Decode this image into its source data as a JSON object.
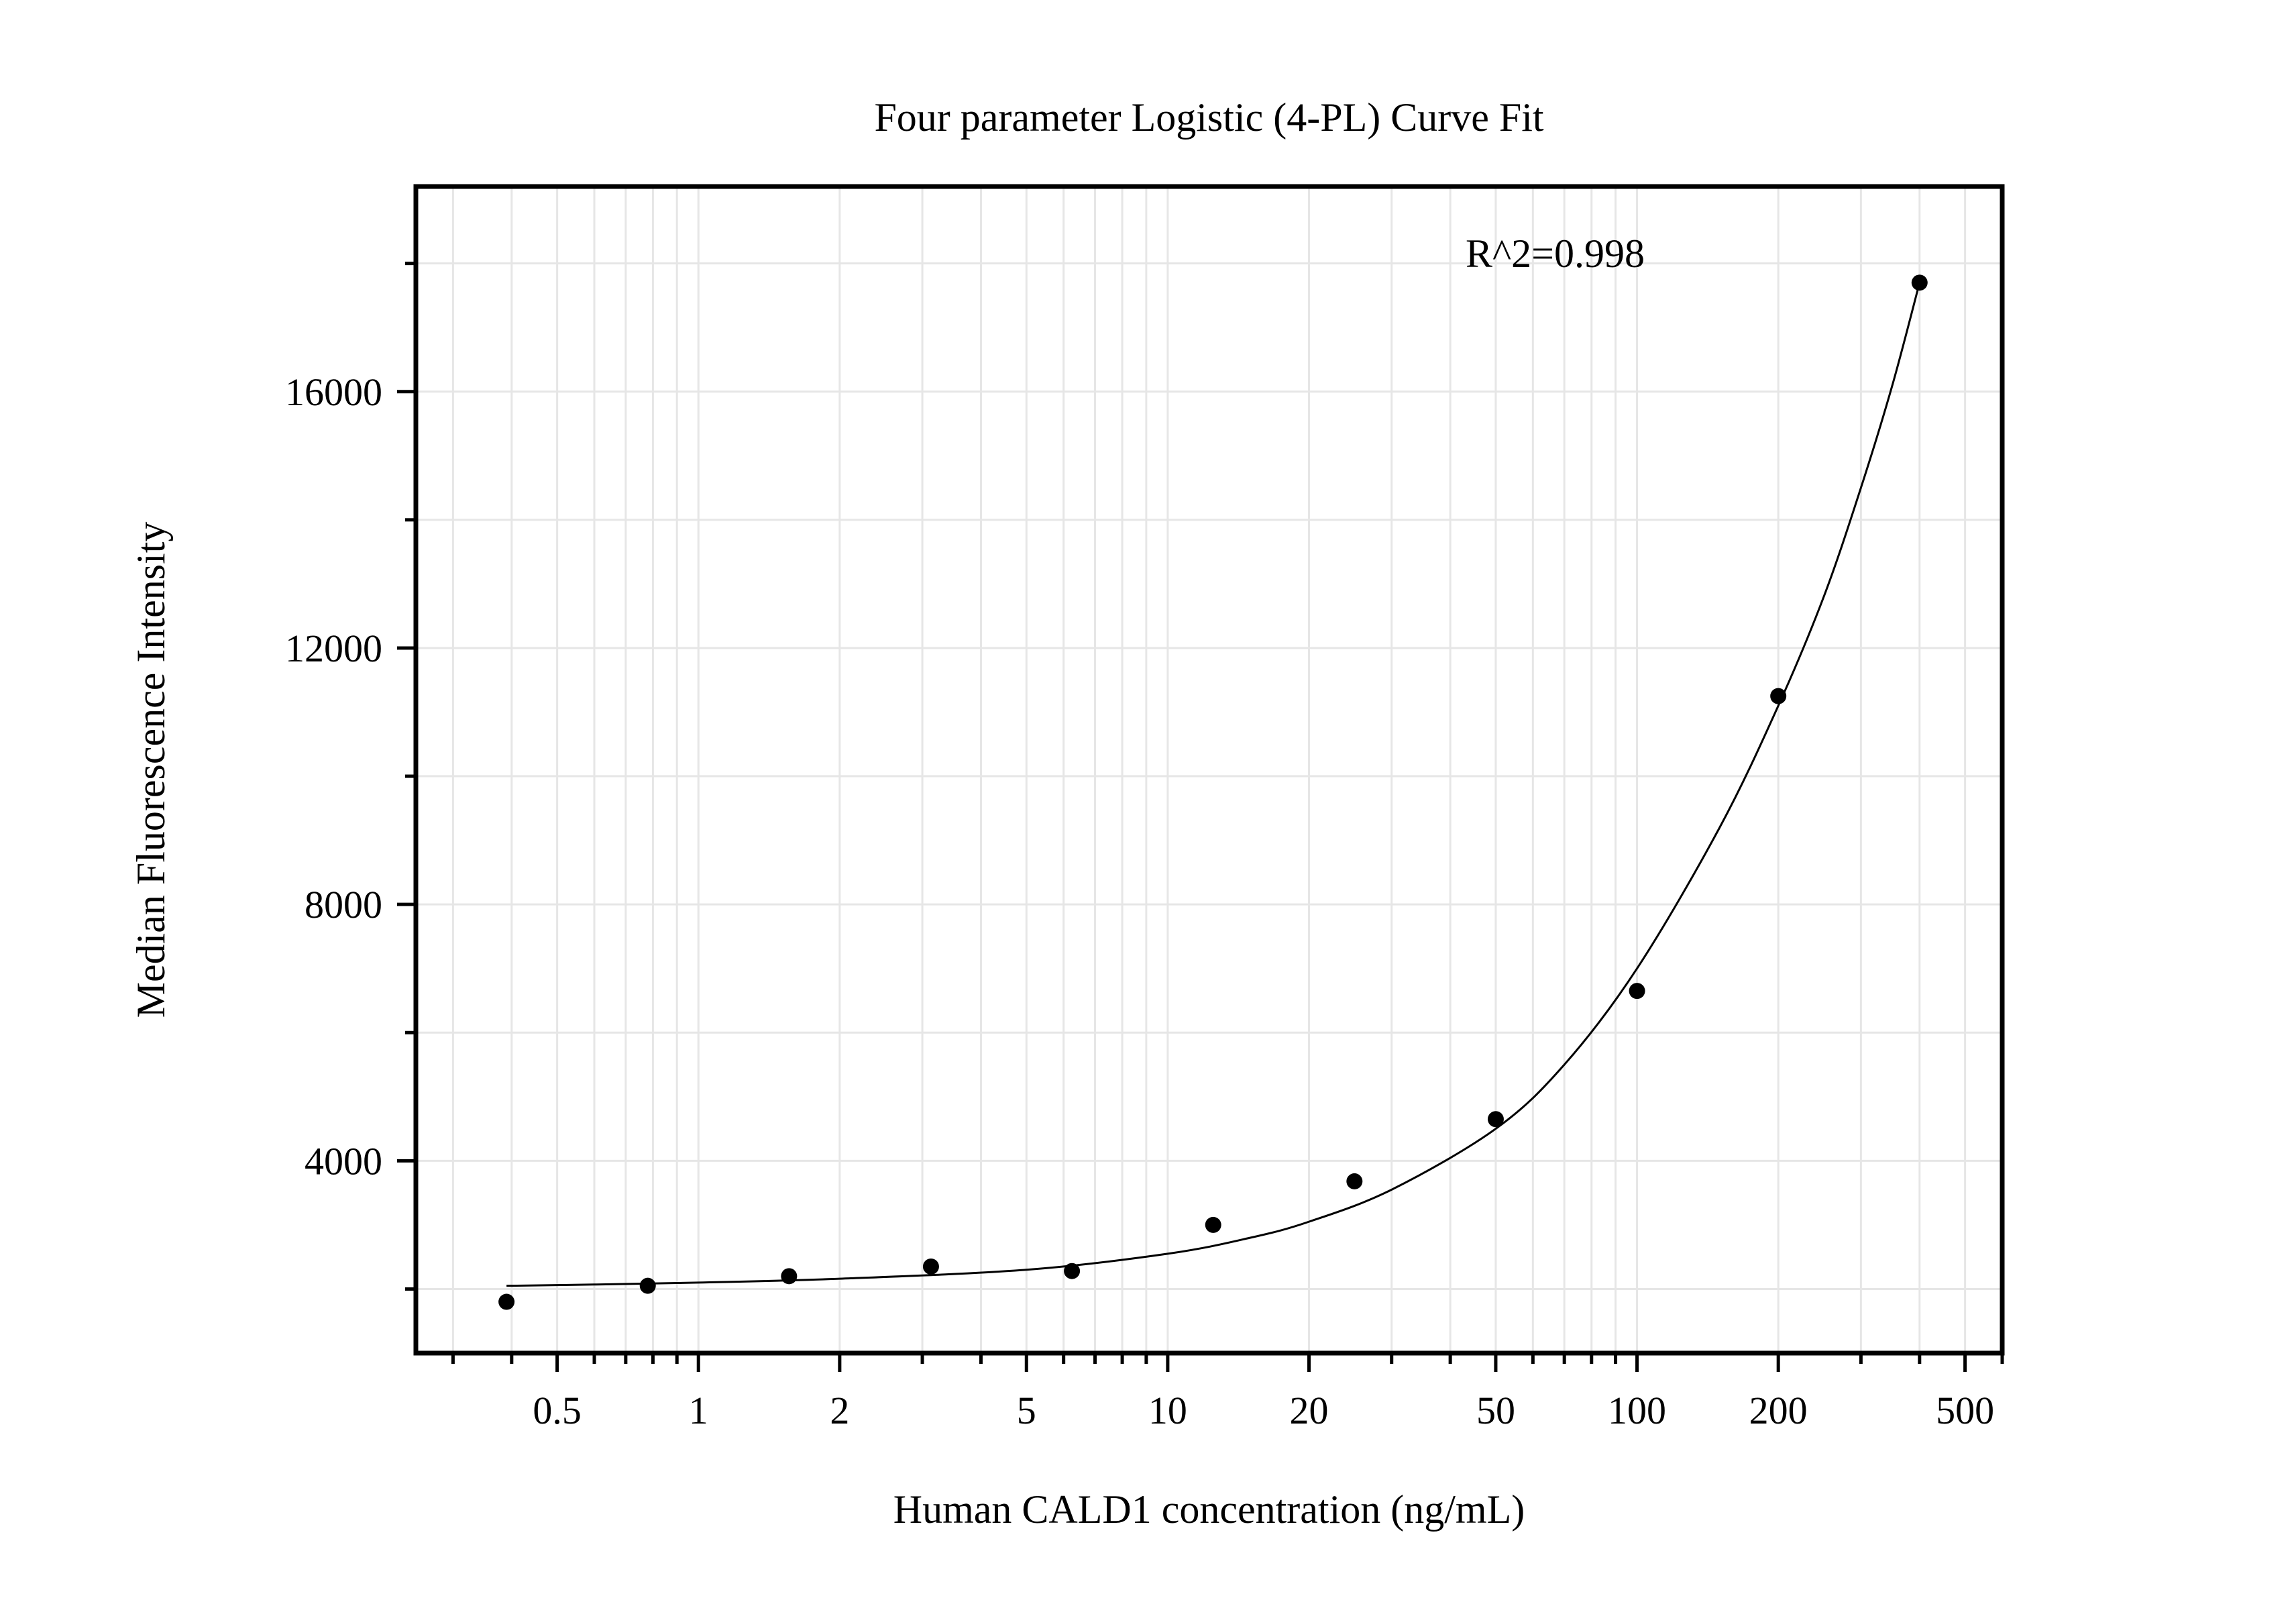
{
  "chart_data": {
    "type": "scatter",
    "title": "Four parameter Logistic (4-PL) Curve Fit",
    "xlabel": "Human CALD1 concentration (ng/mL)",
    "ylabel": "Median Fluorescence Intensity",
    "x_scale": "log",
    "xlim": [
      0.25,
      600
    ],
    "ylim": [
      1000,
      19200
    ],
    "x_ticks": [
      0.5,
      1,
      2,
      5,
      10,
      20,
      50,
      100,
      200,
      500
    ],
    "x_tick_labels": [
      "0.5",
      "1",
      "2",
      "5",
      "10",
      "20",
      "50",
      "100",
      "200",
      "500"
    ],
    "y_ticks": [
      4000,
      8000,
      12000,
      16000
    ],
    "y_tick_labels": [
      "4000",
      "8000",
      "12000",
      "16000"
    ],
    "grid": true,
    "annotation": "R^2=0.998",
    "series": [
      {
        "type": "scatter",
        "x": [
          0.39,
          0.78,
          1.56,
          3.13,
          6.25,
          12.5,
          25,
          50,
          100,
          200,
          400
        ],
        "y": [
          1800,
          2050,
          2200,
          2350,
          2280,
          3000,
          3680,
          4650,
          6650,
          11250,
          17700
        ]
      },
      {
        "type": "line",
        "fit": "4-PL",
        "x": [
          0.39,
          0.6,
          1,
          2,
          5,
          10,
          15,
          20,
          30,
          50,
          70,
          100,
          150,
          200,
          250,
          300,
          350,
          400
        ],
        "y": [
          2050,
          2070,
          2100,
          2160,
          2300,
          2550,
          2800,
          3050,
          3550,
          4500,
          5500,
          7000,
          9200,
          11100,
          12800,
          14500,
          16100,
          17700
        ]
      }
    ]
  },
  "colors": {
    "axis": "#000000",
    "grid": "#e6e6e6",
    "marker": "#000000",
    "curve": "#000000"
  }
}
